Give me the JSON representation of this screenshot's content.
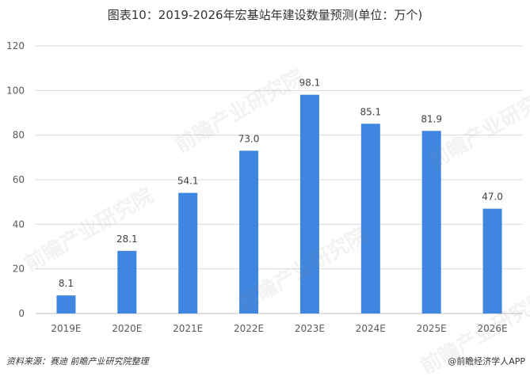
{
  "title": "图表10：2019-2026年宏基站年建设数量预测(单位：万个)",
  "source": "资料来源：赛迪 前瞻产业研究院整理",
  "credit": "@前瞻经济学人APP",
  "watermark": "前瞻产业研究院",
  "colors": {
    "bar": "#3F86E0",
    "grid": "#D9D9D9",
    "axis": "#BFBFBF"
  },
  "chart_data": {
    "type": "bar",
    "categories": [
      "2019E",
      "2020E",
      "2021E",
      "2022E",
      "2023E",
      "2024E",
      "2025E",
      "2026E"
    ],
    "values": [
      8.1,
      28.1,
      54.1,
      73.0,
      98.1,
      85.1,
      81.9,
      47.0
    ],
    "value_labels": [
      "8.1",
      "28.1",
      "54.1",
      "73.0",
      "98.1",
      "85.1",
      "81.9",
      "47.0"
    ],
    "ylim": [
      0,
      120
    ],
    "yticks": [
      0,
      20,
      40,
      60,
      80,
      100,
      120
    ],
    "grid": true,
    "legend": "none"
  }
}
